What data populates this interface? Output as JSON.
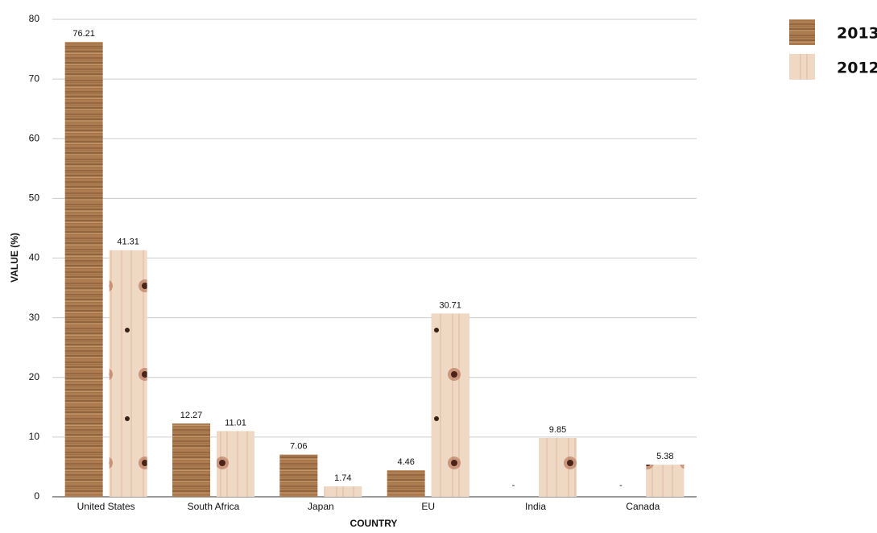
{
  "chart_data": {
    "type": "bar",
    "x_label": "COUNTRY",
    "y_label": "VALUE (%)",
    "categories": [
      "United States",
      "South Africa",
      "Japan",
      "EU",
      "India",
      "Canada"
    ],
    "series": [
      {
        "name": "2013",
        "color": "#ad7c51",
        "values": [
          76.21,
          12.27,
          7.06,
          4.46,
          null,
          null
        ],
        "value_labels": [
          "76.21",
          "12.27",
          "7.06",
          "4.46",
          "-",
          "-"
        ]
      },
      {
        "name": "2012",
        "color": "#efd9c4",
        "values": [
          41.31,
          11.01,
          1.74,
          30.71,
          9.85,
          5.38
        ]
      }
    ],
    "ylim": [
      0,
      80
    ],
    "yticks": [
      0,
      10,
      20,
      30,
      40,
      50,
      60,
      70,
      80
    ],
    "grid": true
  }
}
